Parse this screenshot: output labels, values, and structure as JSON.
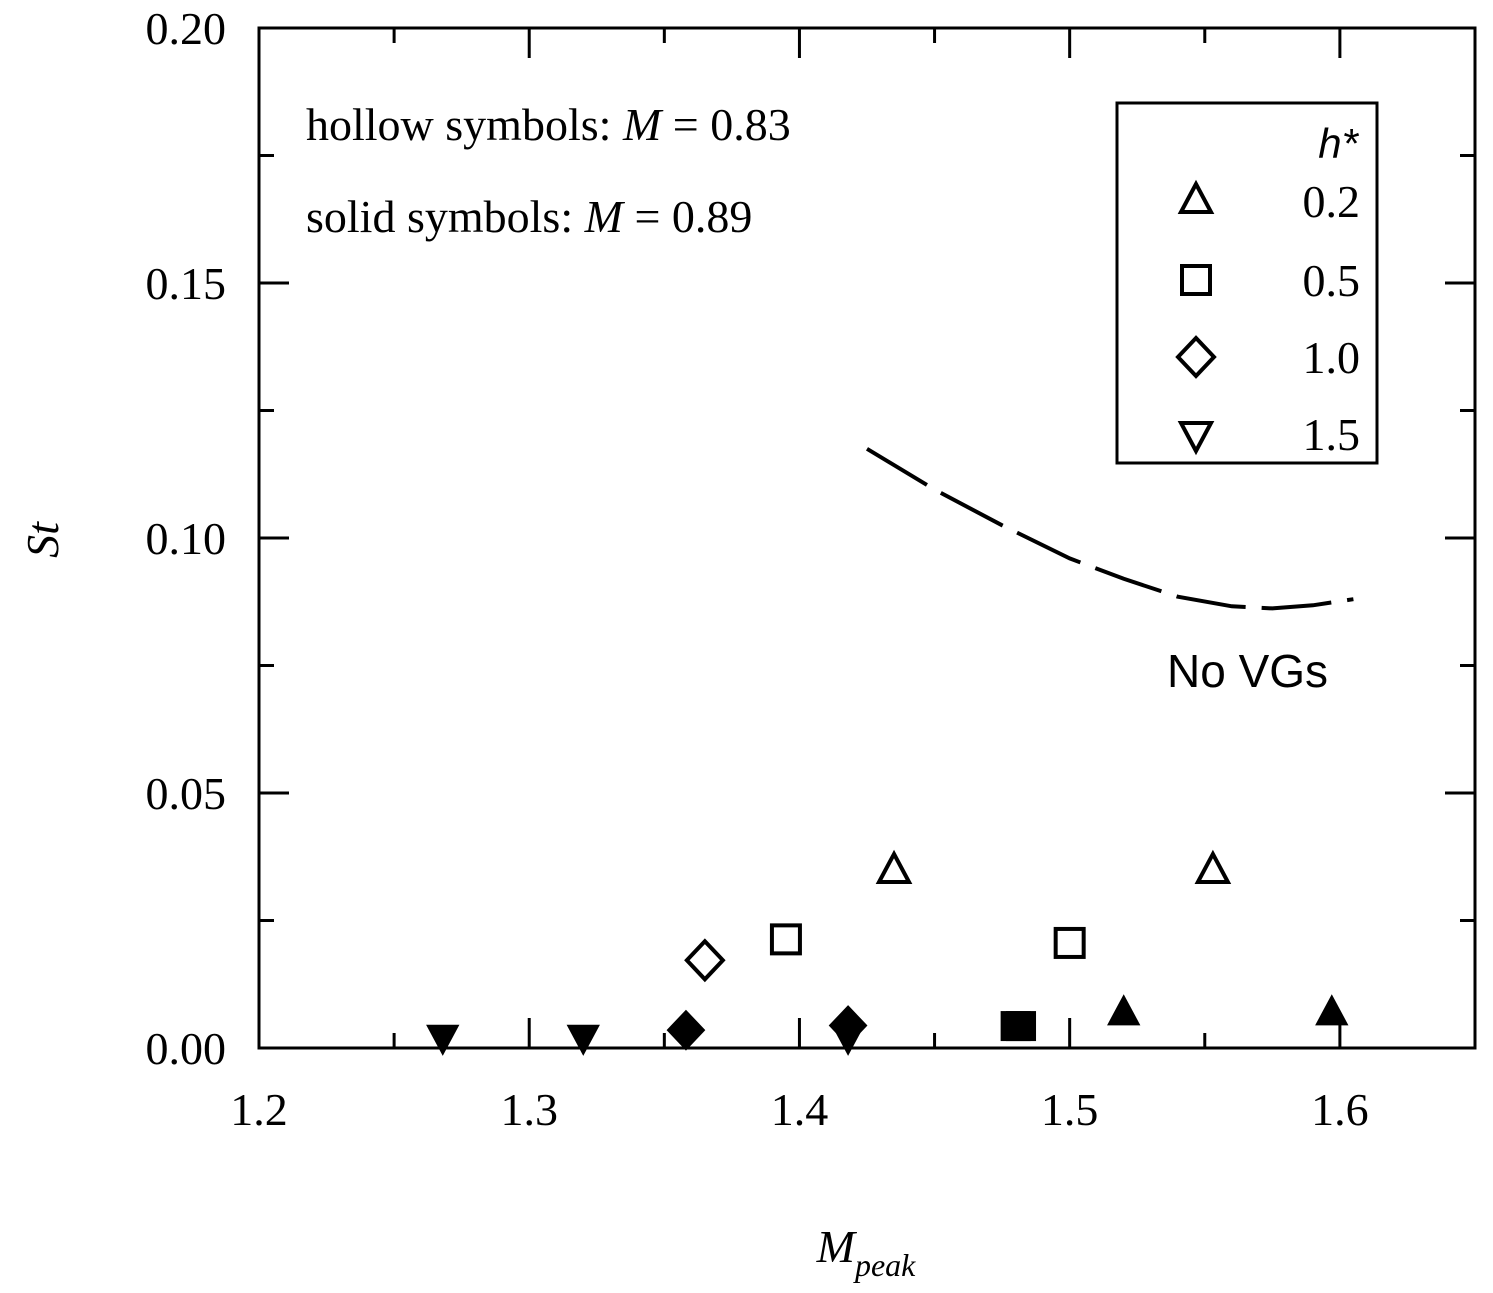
{
  "chart_data": {
    "type": "scatter",
    "xlabel_main": "M",
    "xlabel_sub": "peak",
    "ylabel": "St",
    "xlim": [
      1.2,
      1.65
    ],
    "ylim": [
      0.0,
      0.2
    ],
    "x_ticks": [
      1.2,
      1.3,
      1.4,
      1.5,
      1.6
    ],
    "x_tick_labels": [
      "1.2",
      "1.3",
      "1.4",
      "1.5",
      "1.6"
    ],
    "x_minor_ticks": [
      1.25,
      1.35,
      1.45,
      1.55,
      1.65
    ],
    "y_ticks": [
      0.0,
      0.05,
      0.1,
      0.15,
      0.2
    ],
    "y_tick_labels": [
      "0.00",
      "0.05",
      "0.10",
      "0.15",
      "0.20"
    ],
    "y_minor_ticks": [
      0.025,
      0.075,
      0.125,
      0.175
    ],
    "grid": false,
    "legend": {
      "placement": "top-right",
      "title": "h*",
      "entries": [
        {
          "marker": "triangle-up",
          "label": "0.2"
        },
        {
          "marker": "square",
          "label": "0.5"
        },
        {
          "marker": "diamond",
          "label": "1.0"
        },
        {
          "marker": "triangle-down",
          "label": "1.5"
        }
      ]
    },
    "annotations": {
      "hollow_prefix": "hollow symbols: ",
      "hollow_var": "M",
      "hollow_value": " = 0.83",
      "solid_prefix": "solid symbols: ",
      "solid_var": "M",
      "solid_value": " = 0.89",
      "no_vgs": "No VGs"
    },
    "series": [
      {
        "marker": "triangle-up",
        "filled": false,
        "points": [
          [
            1.435,
            0.0347
          ],
          [
            1.553,
            0.0347
          ]
        ]
      },
      {
        "marker": "square",
        "filled": false,
        "points": [
          [
            1.395,
            0.0213
          ],
          [
            1.5,
            0.0206
          ]
        ]
      },
      {
        "marker": "diamond",
        "filled": false,
        "points": [
          [
            1.365,
            0.0172
          ]
        ]
      },
      {
        "marker": "triangle-up",
        "filled": true,
        "points": [
          [
            1.52,
            0.0068
          ],
          [
            1.597,
            0.0068
          ]
        ]
      },
      {
        "marker": "square",
        "filled": true,
        "points": [
          [
            1.48,
            0.0043
          ],
          [
            1.482,
            0.0043
          ]
        ]
      },
      {
        "marker": "diamond",
        "filled": true,
        "points": [
          [
            1.358,
            0.0035
          ],
          [
            1.418,
            0.0044
          ]
        ]
      },
      {
        "marker": "triangle-down",
        "filled": true,
        "points": [
          [
            1.268,
            0.0022
          ],
          [
            1.32,
            0.0022
          ],
          [
            1.418,
            0.0022
          ]
        ]
      }
    ],
    "no_vg_curve": {
      "style": "dashed",
      "points": [
        [
          1.425,
          0.1175
        ],
        [
          1.45,
          0.1095
        ],
        [
          1.475,
          0.1025
        ],
        [
          1.5,
          0.096
        ],
        [
          1.52,
          0.092
        ],
        [
          1.54,
          0.0885
        ],
        [
          1.56,
          0.0866
        ],
        [
          1.575,
          0.0862
        ],
        [
          1.59,
          0.0868
        ],
        [
          1.605,
          0.088
        ]
      ]
    }
  }
}
